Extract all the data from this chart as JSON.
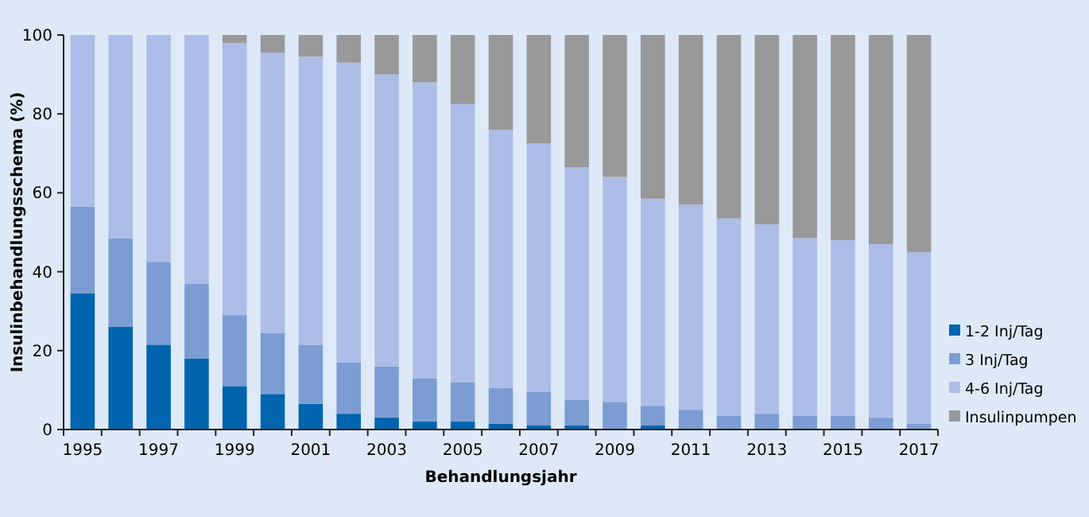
{
  "chart_data": {
    "type": "bar",
    "stacked": true,
    "xlabel": "Behandlungsjahr",
    "ylabel": "Insulinbehandlungsschema (%)",
    "categories": [
      "1995",
      null,
      "1997",
      null,
      "1999",
      null,
      "2001",
      null,
      "2003",
      null,
      "2005",
      null,
      "2007",
      null,
      "2009",
      null,
      "2011",
      null,
      "2013",
      null,
      "2015",
      null,
      "2017"
    ],
    "series": [
      {
        "name": "1-2 Inj/Tag",
        "color": "#0064ae",
        "values": [
          34.5,
          26,
          21.5,
          18,
          11,
          9,
          6.5,
          4,
          3,
          2,
          2,
          1.5,
          1,
          1,
          0,
          1,
          0,
          0,
          0,
          0,
          0,
          0,
          0
        ]
      },
      {
        "name": "3 Inj/Tag",
        "color": "#7b9dd4",
        "values": [
          22,
          22.5,
          21,
          19,
          18,
          15.5,
          15,
          13,
          13,
          11,
          10,
          9,
          8.5,
          6.5,
          7,
          5,
          5,
          3.5,
          4,
          3.5,
          3.5,
          3,
          1.5
        ]
      },
      {
        "name": "4-6 Inj/Tag",
        "color": "#adbde8",
        "values": [
          43.5,
          51.5,
          57.5,
          63,
          69,
          71,
          73,
          76,
          74,
          75,
          70.5,
          65.5,
          63,
          59,
          57,
          52.5,
          52,
          50,
          48,
          45,
          44.5,
          44,
          43.5
        ]
      },
      {
        "name": "Insulinpumpen",
        "color": "#999999",
        "values": [
          0,
          0,
          0,
          0,
          2,
          4.5,
          5.5,
          7,
          10,
          12,
          17.5,
          24,
          27.5,
          33.5,
          36,
          41.5,
          43,
          46.5,
          48,
          51.5,
          52,
          53,
          55
        ]
      }
    ],
    "ylim": [
      0,
      100
    ],
    "yticks": [
      0,
      20,
      40,
      60,
      80,
      100
    ],
    "grid": false,
    "legend": "right"
  }
}
